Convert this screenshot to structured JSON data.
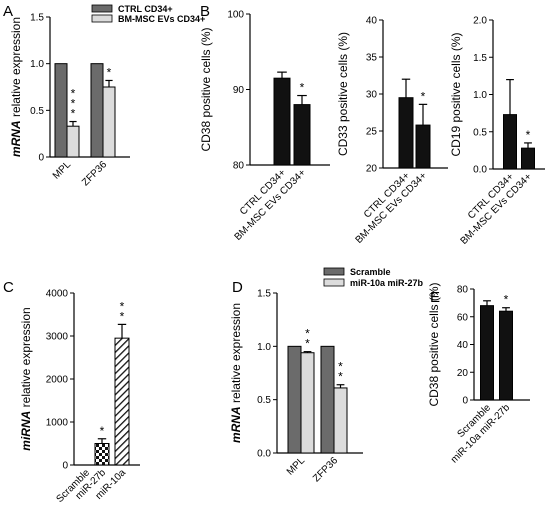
{
  "figure": {
    "panel_labels": [
      "A",
      "B",
      "C",
      "D",
      "E"
    ]
  },
  "colors": {
    "dark_gray": "#6b6b6b",
    "light_gray": "#dcdcdc",
    "black": "#111111",
    "white": "#ffffff"
  },
  "chart_data": [
    {
      "id": "A",
      "type": "bar",
      "ylabel_italic": "mRNA",
      "ylabel_rest": " relative expression",
      "ylim": [
        0,
        1.5
      ],
      "yticks": [
        0,
        0.5,
        1.0,
        1.5
      ],
      "ytick_labels": [
        "0",
        "0.5",
        "1.0",
        "1.5"
      ],
      "categories": [
        "MPL",
        "ZFP36"
      ],
      "series": [
        {
          "name": "CTRL CD34+",
          "values": [
            1.0,
            1.0
          ],
          "errors": [
            0,
            0
          ],
          "style": "dark"
        },
        {
          "name": "BM-MSC EVs CD34+",
          "values": [
            0.33,
            0.75
          ],
          "errors": [
            0.05,
            0.07
          ],
          "style": "light"
        }
      ],
      "annotations": [
        {
          "series": 1,
          "category": 0,
          "text": "*\n*\n*"
        },
        {
          "series": 1,
          "category": 1,
          "text": "*"
        }
      ]
    },
    {
      "id": "B1",
      "type": "bar",
      "ylabel": "CD38 positive cells (%)",
      "ylim": [
        80,
        100
      ],
      "yticks": [
        80,
        90,
        100
      ],
      "ytick_labels": [
        "80",
        "90",
        "100"
      ],
      "categories": [
        "CTRL CD34+",
        "BM-MSC EVs CD34+"
      ],
      "values": [
        91.5,
        88.0
      ],
      "errors": [
        0.8,
        1.2
      ],
      "annotations": [
        {
          "category": 1,
          "text": "*"
        }
      ]
    },
    {
      "id": "B2",
      "type": "bar",
      "ylabel": "CD33 positive cells (%)",
      "ylim": [
        20,
        40
      ],
      "yticks": [
        20,
        25,
        30,
        35,
        40
      ],
      "ytick_labels": [
        "20",
        "25",
        "30",
        "35",
        "40"
      ],
      "categories": [
        "CTRL CD34+",
        "BM-MSC EVs CD34+"
      ],
      "values": [
        29.5,
        25.8
      ],
      "errors": [
        2.5,
        2.8
      ],
      "annotations": [
        {
          "category": 1,
          "text": "*"
        }
      ]
    },
    {
      "id": "B3",
      "type": "bar",
      "ylabel": "CD19 positive cells (%)",
      "ylim": [
        0,
        2.0
      ],
      "yticks": [
        0,
        0.5,
        1.0,
        1.5,
        2.0
      ],
      "ytick_labels": [
        "0.0",
        "0.5",
        "1.0",
        "1.5",
        "2.0"
      ],
      "categories": [
        "CTRL CD34+",
        "BM-MSC EVs CD34+"
      ],
      "values": [
        0.73,
        0.28
      ],
      "errors": [
        0.47,
        0.07
      ],
      "annotations": [
        {
          "category": 1,
          "text": "*"
        }
      ]
    },
    {
      "id": "C",
      "type": "bar",
      "ylabel_italic": "miRNA",
      "ylabel_rest": " relative expression",
      "ylim": [
        0,
        4000
      ],
      "yticks": [
        0,
        1000,
        2000,
        3000,
        4000
      ],
      "ytick_labels": [
        "0",
        "1000",
        "2000",
        "3000",
        "4000"
      ],
      "categories": [
        "Scramble",
        "miR-27b",
        "miR-10a"
      ],
      "values": [
        0,
        500,
        2950
      ],
      "errors": [
        0,
        110,
        320
      ],
      "styles": [
        "plain",
        "checker",
        "hatch"
      ],
      "annotations": [
        {
          "category": 1,
          "text": "*"
        },
        {
          "category": 2,
          "text": "*\n*"
        }
      ]
    },
    {
      "id": "D",
      "type": "bar",
      "ylabel_italic": "mRNA",
      "ylabel_rest": " relative expression",
      "ylim": [
        0,
        1.5
      ],
      "yticks": [
        0,
        0.5,
        1.0,
        1.5
      ],
      "ytick_labels": [
        "0.0",
        "0.5",
        "1.0",
        "1.5"
      ],
      "categories": [
        "MPL",
        "ZFP36"
      ],
      "series": [
        {
          "name": "Scramble",
          "values": [
            1.0,
            1.0
          ],
          "errors": [
            0,
            0
          ],
          "style": "dark"
        },
        {
          "name": "miR-10a miR-27b",
          "values": [
            0.94,
            0.61
          ],
          "errors": [
            0.01,
            0.03
          ],
          "style": "light"
        }
      ],
      "annotations": [
        {
          "series": 1,
          "category": 0,
          "text": "*\n*"
        },
        {
          "series": 1,
          "category": 1,
          "text": "*\n*"
        }
      ]
    },
    {
      "id": "E",
      "type": "bar",
      "ylabel": "CD38 positive cells (%)",
      "ylim": [
        0,
        80
      ],
      "yticks": [
        0,
        20,
        40,
        60,
        80
      ],
      "ytick_labels": [
        "0",
        "20",
        "40",
        "60",
        "80"
      ],
      "categories": [
        "Scramble",
        "miR-10a miR-27b"
      ],
      "values": [
        68,
        64
      ],
      "errors": [
        3.5,
        2.5
      ],
      "annotations": [
        {
          "category": 1,
          "text": "*"
        }
      ]
    }
  ]
}
